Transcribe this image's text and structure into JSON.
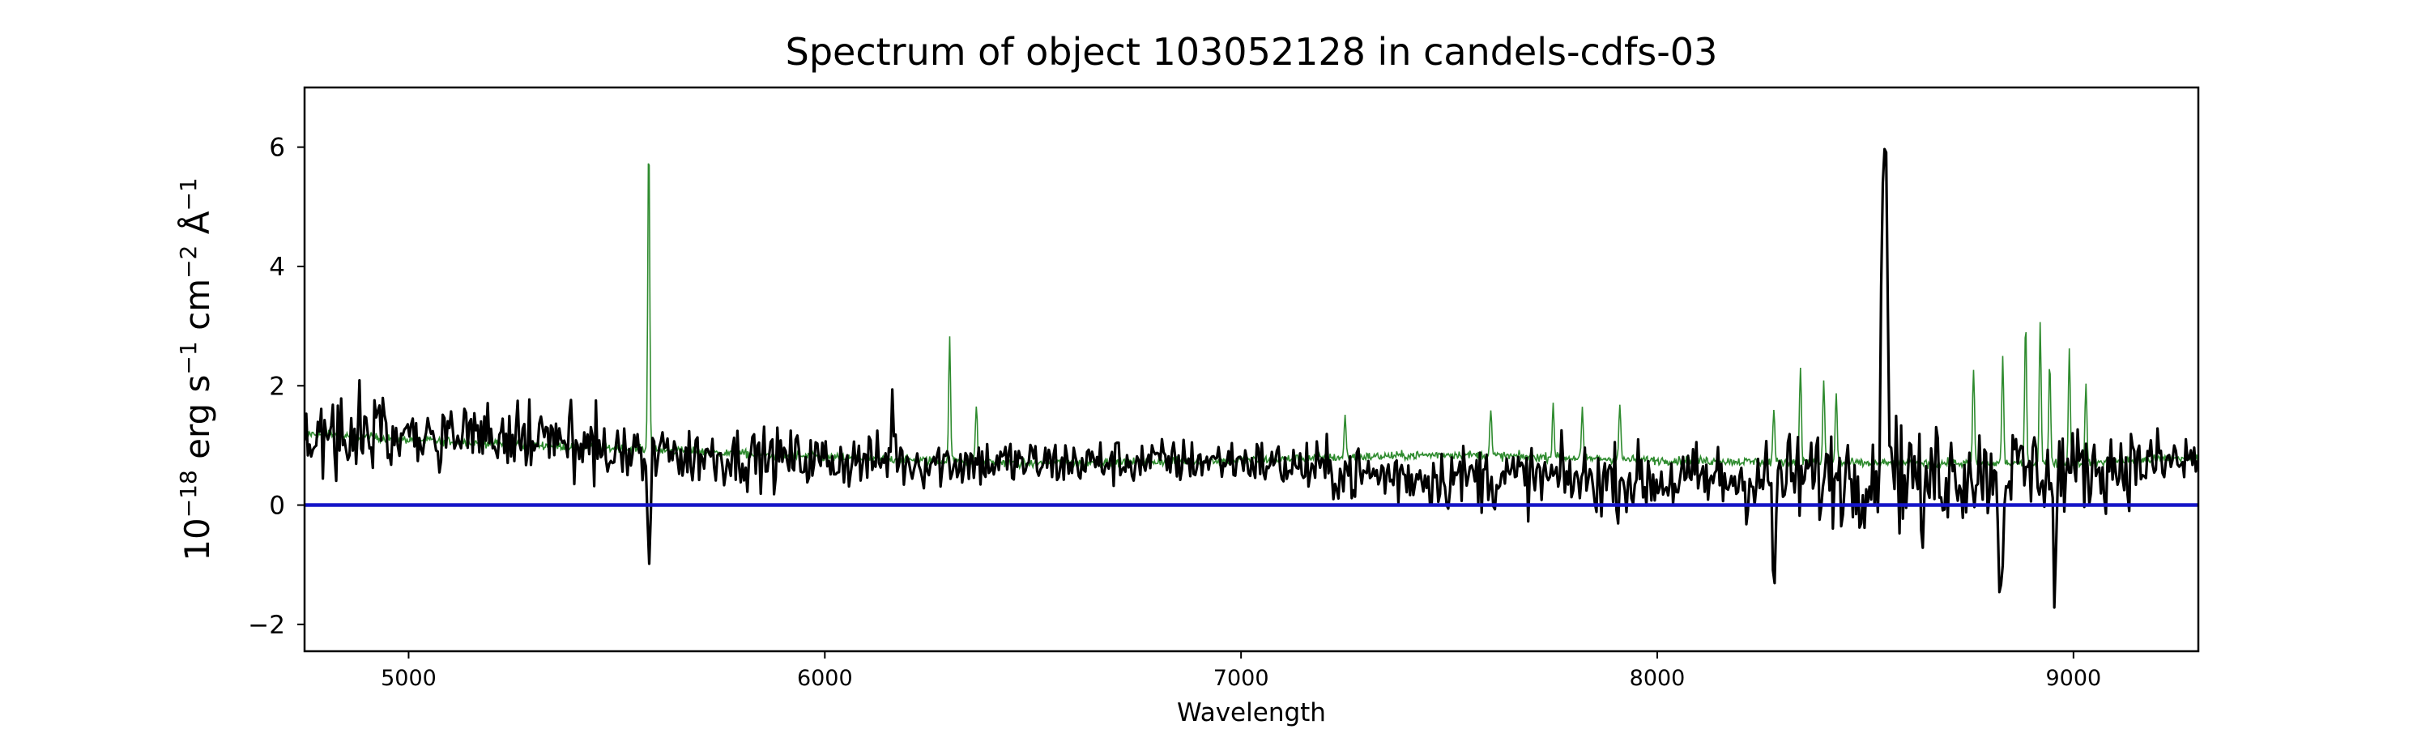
{
  "chart_data": {
    "type": "line",
    "title": "Spectrum of object 103052128 in candels-cdfs-03",
    "xlabel": "Wavelength",
    "ylabel_parts": [
      "10",
      "−18",
      " erg s",
      "−1",
      " cm",
      "−2",
      " Å",
      "−1"
    ],
    "xlim": [
      4750,
      9300
    ],
    "ylim": [
      -2.45,
      7.0
    ],
    "x_ticks": [
      5000,
      6000,
      7000,
      8000,
      9000
    ],
    "x_tick_labels": [
      "5000",
      "6000",
      "7000",
      "8000",
      "9000"
    ],
    "y_ticks": [
      -2,
      0,
      2,
      4,
      6
    ],
    "y_tick_labels": [
      "−2",
      "0",
      "2",
      "4",
      "6"
    ],
    "grid": false,
    "series": [
      {
        "role": "flux",
        "color": "#000000",
        "baseline": [
          [
            4750,
            1.2
          ],
          [
            5000,
            1.25
          ],
          [
            5300,
            1.1
          ],
          [
            5500,
            0.9
          ],
          [
            6000,
            0.75
          ],
          [
            6500,
            0.7
          ],
          [
            7000,
            0.75
          ],
          [
            7300,
            0.5
          ],
          [
            7700,
            0.45
          ],
          [
            8000,
            0.4
          ],
          [
            8300,
            0.45
          ],
          [
            8600,
            0.55
          ],
          [
            9000,
            0.6
          ],
          [
            9300,
            0.75
          ]
        ],
        "noise": [
          [
            4750,
            0.6
          ],
          [
            5500,
            0.5
          ],
          [
            6000,
            0.45
          ],
          [
            7000,
            0.35
          ],
          [
            7300,
            0.5
          ],
          [
            8000,
            0.55
          ],
          [
            8300,
            0.7
          ],
          [
            8600,
            0.9
          ],
          [
            9300,
            0.5
          ]
        ],
        "features": [
          {
            "x": 5577,
            "y": -1.2
          },
          {
            "x": 6163,
            "y": 1.8
          },
          {
            "x": 8280,
            "y": -1.4
          },
          {
            "x": 8547,
            "y": 6.6
          },
          {
            "x": 8640,
            "y": -1.0
          },
          {
            "x": 8825,
            "y": -2.0
          },
          {
            "x": 8955,
            "y": -1.5
          }
        ]
      },
      {
        "role": "model",
        "color": "#2e8b2e",
        "baseline": [
          [
            4750,
            1.2
          ],
          [
            5000,
            1.1
          ],
          [
            5500,
            0.95
          ],
          [
            6000,
            0.8
          ],
          [
            6500,
            0.7
          ],
          [
            7000,
            0.75
          ],
          [
            7500,
            0.85
          ],
          [
            8000,
            0.75
          ],
          [
            8500,
            0.7
          ],
          [
            9000,
            0.7
          ],
          [
            9300,
            0.8
          ]
        ],
        "spikes": [
          {
            "x": 5577,
            "y": 6.25
          },
          {
            "x": 6300,
            "y": 2.8
          },
          {
            "x": 6364,
            "y": 1.7
          },
          {
            "x": 7250,
            "y": 1.5
          },
          {
            "x": 7600,
            "y": 1.6
          },
          {
            "x": 7750,
            "y": 1.7
          },
          {
            "x": 7820,
            "y": 1.6
          },
          {
            "x": 7910,
            "y": 1.7
          },
          {
            "x": 8280,
            "y": 1.6
          },
          {
            "x": 8344,
            "y": 2.35
          },
          {
            "x": 8400,
            "y": 2.1
          },
          {
            "x": 8430,
            "y": 1.9
          },
          {
            "x": 8760,
            "y": 2.3
          },
          {
            "x": 8830,
            "y": 2.5
          },
          {
            "x": 8885,
            "y": 3.05
          },
          {
            "x": 8920,
            "y": 3.05
          },
          {
            "x": 8943,
            "y": 2.4
          },
          {
            "x": 8990,
            "y": 2.6
          },
          {
            "x": 9030,
            "y": 2.0
          }
        ]
      },
      {
        "role": "zero",
        "color": "#1515c8",
        "y": 0
      }
    ]
  }
}
